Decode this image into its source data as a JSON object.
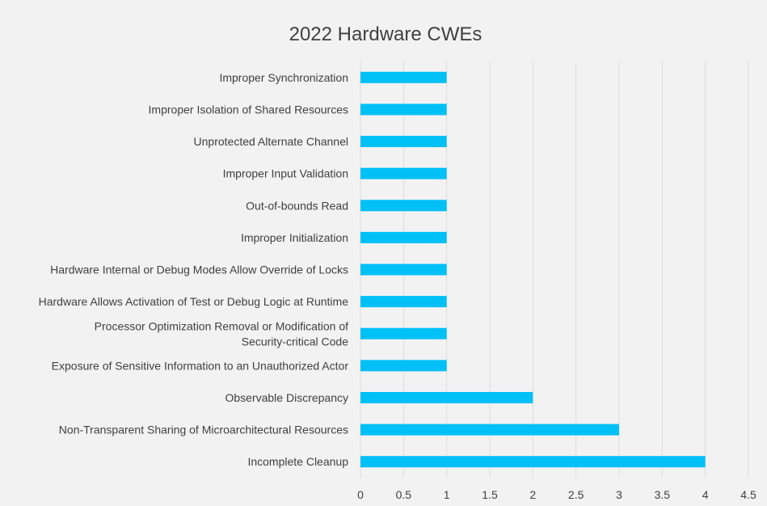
{
  "chart_data": {
    "type": "bar",
    "orientation": "horizontal",
    "title": "2022 Hardware CWEs",
    "categories": [
      "Improper Synchronization",
      "Improper Isolation of Shared Resources",
      "Unprotected Alternate Channel",
      "Improper Input Validation",
      "Out-of-bounds Read",
      "Improper Initialization",
      "Hardware Internal or Debug Modes Allow Override of Locks",
      "Hardware Allows Activation of Test or Debug Logic at Runtime",
      "Processor Optimization Removal or Modification of Security-critical Code",
      "Exposure of Sensitive Information to an Unauthorized Actor",
      "Observable Discrepancy",
      "Non-Transparent Sharing of Microarchitectural Resources",
      "Incomplete Cleanup"
    ],
    "values": [
      1,
      1,
      1,
      1,
      1,
      1,
      1,
      1,
      1,
      1,
      2,
      3,
      4
    ],
    "xlim": [
      0,
      4.5
    ],
    "xticks": [
      "0",
      "0.5",
      "1",
      "1.5",
      "2",
      "2.5",
      "3",
      "3.5",
      "4",
      "4.5"
    ],
    "xlabel": "",
    "ylabel": "",
    "grid": "vertical",
    "bar_color": "#00c0f6"
  }
}
